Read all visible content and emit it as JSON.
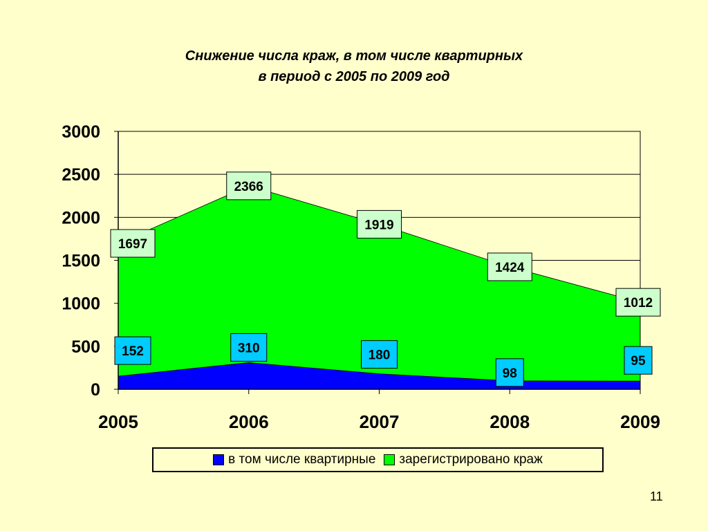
{
  "title_line1": "Снижение числа краж, в том числе квартирных",
  "title_line2": "в период с 2005 по 2009 год",
  "page_number": "11",
  "colors": {
    "background": "#ffffcc",
    "total_series": "#00ff00",
    "apartment_series": "#0000ff",
    "total_label_bg": "#ccffcc",
    "apartment_label_bg": "#00ccff"
  },
  "chart_data": {
    "type": "area",
    "title": "Снижение числа краж, в том числе квартирных в период с 2005 по 2009 год",
    "categories": [
      "2005",
      "2006",
      "2007",
      "2008",
      "2009"
    ],
    "y_ticks": [
      "0",
      "500",
      "1000",
      "1500",
      "2000",
      "2500",
      "3000"
    ],
    "ylim": [
      0,
      3000
    ],
    "grid": true,
    "legend_position": "bottom",
    "series": [
      {
        "name": "в том числе квартирные",
        "values": [
          152,
          310,
          180,
          98,
          95
        ],
        "color": "#0000ff"
      },
      {
        "name": "зарегистрировано краж",
        "values": [
          1697,
          2366,
          1919,
          1424,
          1012
        ],
        "color": "#00ff00"
      }
    ]
  }
}
